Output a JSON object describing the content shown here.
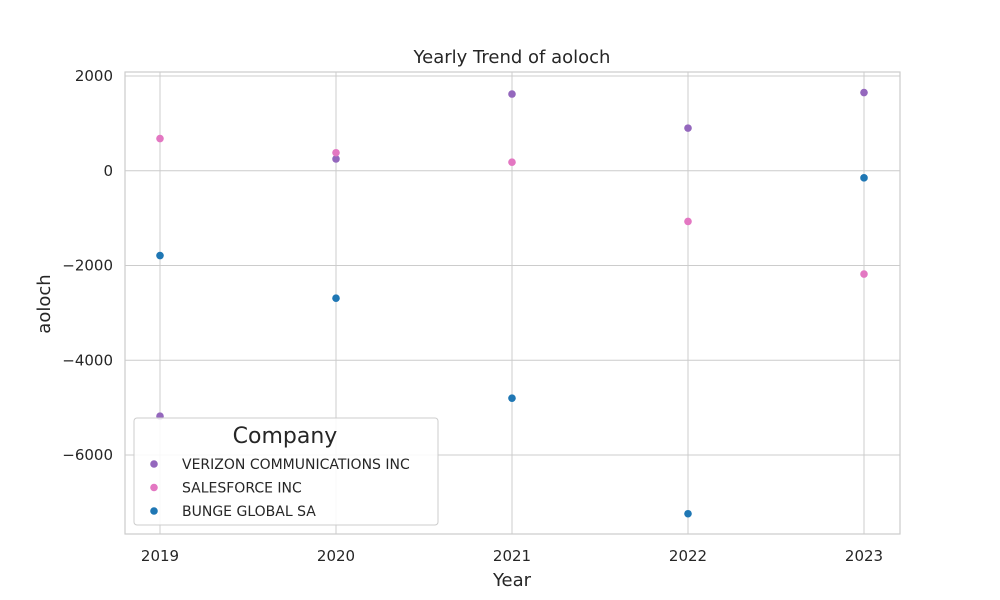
{
  "chart_data": {
    "type": "scatter",
    "title": "Yearly Trend of aoloch",
    "xlabel": "Year",
    "ylabel": "aoloch",
    "x": [
      "2019",
      "2020",
      "2021",
      "2022",
      "2023"
    ],
    "yticks": [
      "2000",
      "0",
      "−2000",
      "−4000",
      "−6000"
    ],
    "ylim": [
      -7700,
      2100
    ],
    "grid": true,
    "legend": {
      "title": "Company",
      "placement": "lower-left"
    },
    "series": [
      {
        "name": "VERIZON COMMUNICATIONS INC",
        "color": "#9467bd",
        "values": [
          -5180,
          250,
          1620,
          900,
          1650
        ]
      },
      {
        "name": "SALESFORCE INC",
        "color": "#e377c2",
        "values": [
          680,
          380,
          180,
          -1070,
          -2180
        ]
      },
      {
        "name": "BUNGE GLOBAL SA",
        "color": "#1f77b4",
        "values": [
          -1790,
          -2690,
          -4800,
          -7240,
          -150
        ]
      }
    ]
  }
}
